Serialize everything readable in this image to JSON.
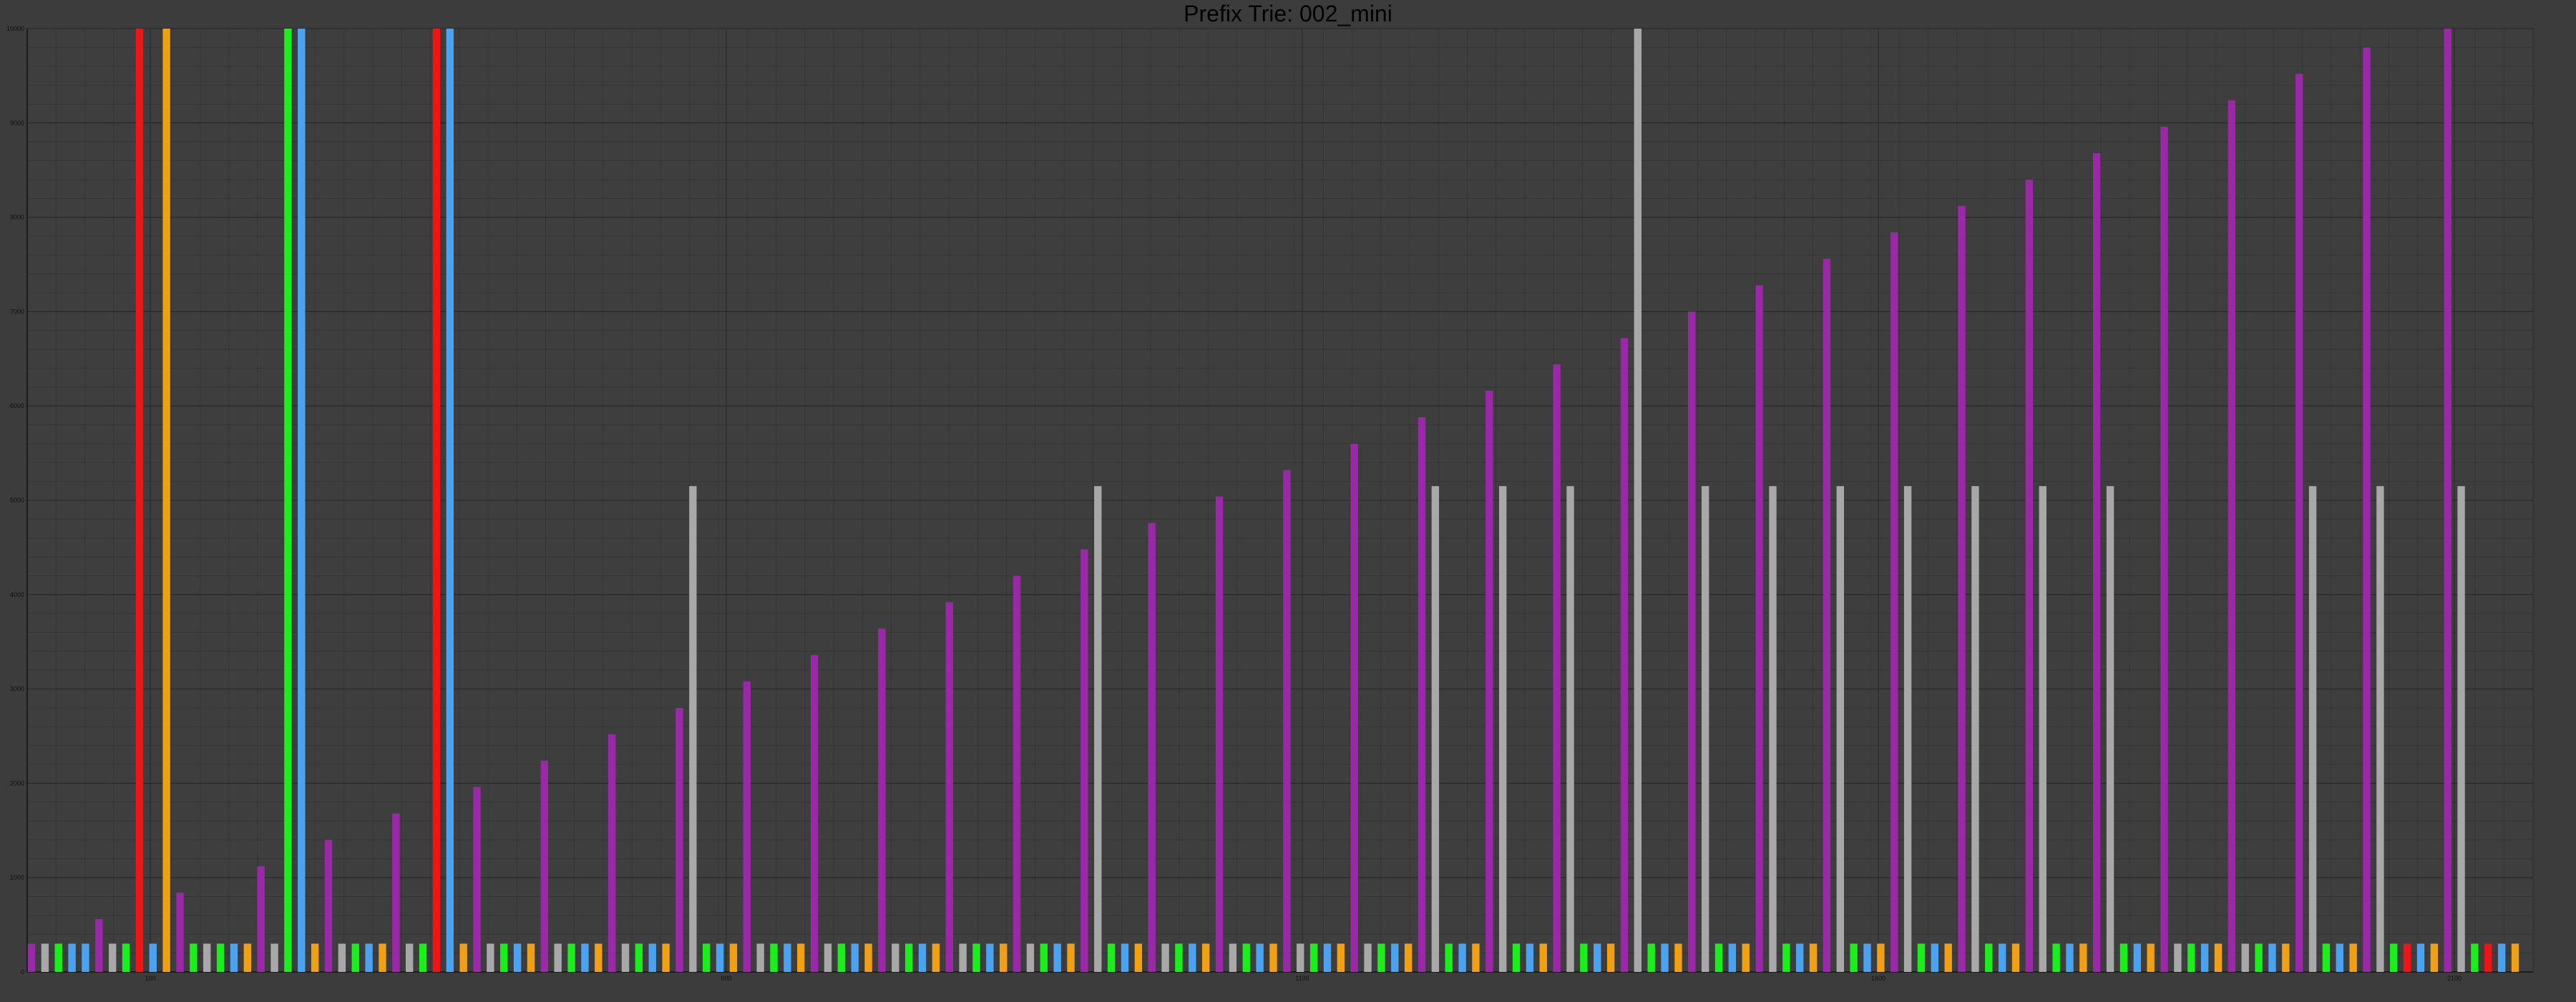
{
  "chart_data": {
    "type": "bar",
    "title": "Prefix Trie: 002_mini",
    "xlabel": "",
    "ylabel": "",
    "ylim": [
      0,
      10000
    ],
    "yticks": [
      0,
      1000,
      2000,
      3000,
      4000,
      5000,
      6000,
      7000,
      8000,
      9000,
      10000
    ],
    "xticks": [
      "100",
      "600",
      "1100",
      "1600",
      "2100"
    ],
    "grid": true,
    "legend": "none",
    "colors": {
      "purple": "#9b28a8",
      "gray": "#a8a8a8",
      "blue": "#4aa3f0",
      "green": "#19f019",
      "orange": "#f0a010",
      "red": "#f01414"
    },
    "bars": [
      {
        "c": "purple",
        "v": 300
      },
      {
        "c": "gray",
        "v": 300
      },
      {
        "c": "green",
        "v": 300
      },
      {
        "c": "blue",
        "v": 300
      },
      {
        "c": "blue",
        "v": 300
      },
      {
        "c": "purple",
        "v": 560
      },
      {
        "c": "gray",
        "v": 300
      },
      {
        "c": "green",
        "v": 300
      },
      {
        "c": "red",
        "v": 10000
      },
      {
        "c": "blue",
        "v": 300
      },
      {
        "c": "orange",
        "v": 10000
      },
      {
        "c": "purple",
        "v": 840
      },
      {
        "c": "green",
        "v": 300
      },
      {
        "c": "gray",
        "v": 300
      },
      {
        "c": "green",
        "v": 300
      },
      {
        "c": "blue",
        "v": 300
      },
      {
        "c": "orange",
        "v": 300
      },
      {
        "c": "purple",
        "v": 1120
      },
      {
        "c": "gray",
        "v": 300
      },
      {
        "c": "green",
        "v": 10000
      },
      {
        "c": "blue",
        "v": 10000
      },
      {
        "c": "orange",
        "v": 300
      },
      {
        "c": "purple",
        "v": 1400
      },
      {
        "c": "gray",
        "v": 300
      },
      {
        "c": "green",
        "v": 300
      },
      {
        "c": "blue",
        "v": 300
      },
      {
        "c": "orange",
        "v": 300
      },
      {
        "c": "purple",
        "v": 1680
      },
      {
        "c": "gray",
        "v": 300
      },
      {
        "c": "green",
        "v": 300
      },
      {
        "c": "red",
        "v": 10000
      },
      {
        "c": "blue",
        "v": 10000
      },
      {
        "c": "orange",
        "v": 300
      },
      {
        "c": "purple",
        "v": 1960
      },
      {
        "c": "gray",
        "v": 300
      },
      {
        "c": "green",
        "v": 300
      },
      {
        "c": "blue",
        "v": 300
      },
      {
        "c": "orange",
        "v": 300
      },
      {
        "c": "purple",
        "v": 2240
      },
      {
        "c": "gray",
        "v": 300
      },
      {
        "c": "green",
        "v": 300
      },
      {
        "c": "blue",
        "v": 300
      },
      {
        "c": "orange",
        "v": 300
      },
      {
        "c": "purple",
        "v": 2520
      },
      {
        "c": "gray",
        "v": 300
      },
      {
        "c": "green",
        "v": 300
      },
      {
        "c": "blue",
        "v": 300
      },
      {
        "c": "orange",
        "v": 300
      },
      {
        "c": "purple",
        "v": 2800
      },
      {
        "c": "gray",
        "v": 5150
      },
      {
        "c": "green",
        "v": 300
      },
      {
        "c": "blue",
        "v": 300
      },
      {
        "c": "orange",
        "v": 300
      },
      {
        "c": "purple",
        "v": 3080
      },
      {
        "c": "gray",
        "v": 300
      },
      {
        "c": "green",
        "v": 300
      },
      {
        "c": "blue",
        "v": 300
      },
      {
        "c": "orange",
        "v": 300
      },
      {
        "c": "purple",
        "v": 3360
      },
      {
        "c": "gray",
        "v": 300
      },
      {
        "c": "green",
        "v": 300
      },
      {
        "c": "blue",
        "v": 300
      },
      {
        "c": "orange",
        "v": 300
      },
      {
        "c": "purple",
        "v": 3640
      },
      {
        "c": "gray",
        "v": 300
      },
      {
        "c": "green",
        "v": 300
      },
      {
        "c": "blue",
        "v": 300
      },
      {
        "c": "orange",
        "v": 300
      },
      {
        "c": "purple",
        "v": 3920
      },
      {
        "c": "gray",
        "v": 300
      },
      {
        "c": "green",
        "v": 300
      },
      {
        "c": "blue",
        "v": 300
      },
      {
        "c": "orange",
        "v": 300
      },
      {
        "c": "purple",
        "v": 4200
      },
      {
        "c": "gray",
        "v": 300
      },
      {
        "c": "green",
        "v": 300
      },
      {
        "c": "blue",
        "v": 300
      },
      {
        "c": "orange",
        "v": 300
      },
      {
        "c": "purple",
        "v": 4480
      },
      {
        "c": "gray",
        "v": 5150
      },
      {
        "c": "green",
        "v": 300
      },
      {
        "c": "blue",
        "v": 300
      },
      {
        "c": "orange",
        "v": 300
      },
      {
        "c": "purple",
        "v": 4760
      },
      {
        "c": "gray",
        "v": 300
      },
      {
        "c": "green",
        "v": 300
      },
      {
        "c": "blue",
        "v": 300
      },
      {
        "c": "orange",
        "v": 300
      },
      {
        "c": "purple",
        "v": 5040
      },
      {
        "c": "gray",
        "v": 300
      },
      {
        "c": "green",
        "v": 300
      },
      {
        "c": "blue",
        "v": 300
      },
      {
        "c": "orange",
        "v": 300
      },
      {
        "c": "purple",
        "v": 5320
      },
      {
        "c": "gray",
        "v": 300
      },
      {
        "c": "green",
        "v": 300
      },
      {
        "c": "blue",
        "v": 300
      },
      {
        "c": "orange",
        "v": 300
      },
      {
        "c": "purple",
        "v": 5600
      },
      {
        "c": "gray",
        "v": 300
      },
      {
        "c": "green",
        "v": 300
      },
      {
        "c": "blue",
        "v": 300
      },
      {
        "c": "orange",
        "v": 300
      },
      {
        "c": "purple",
        "v": 5880
      },
      {
        "c": "gray",
        "v": 5150
      },
      {
        "c": "green",
        "v": 300
      },
      {
        "c": "blue",
        "v": 300
      },
      {
        "c": "orange",
        "v": 300
      },
      {
        "c": "purple",
        "v": 6160
      },
      {
        "c": "gray",
        "v": 5150
      },
      {
        "c": "green",
        "v": 300
      },
      {
        "c": "blue",
        "v": 300
      },
      {
        "c": "orange",
        "v": 300
      },
      {
        "c": "purple",
        "v": 6440
      },
      {
        "c": "gray",
        "v": 5150
      },
      {
        "c": "green",
        "v": 300
      },
      {
        "c": "blue",
        "v": 300
      },
      {
        "c": "orange",
        "v": 300
      },
      {
        "c": "purple",
        "v": 6720
      },
      {
        "c": "gray",
        "v": 10000
      },
      {
        "c": "green",
        "v": 300
      },
      {
        "c": "blue",
        "v": 300
      },
      {
        "c": "orange",
        "v": 300
      },
      {
        "c": "purple",
        "v": 7000
      },
      {
        "c": "gray",
        "v": 5150
      },
      {
        "c": "green",
        "v": 300
      },
      {
        "c": "blue",
        "v": 300
      },
      {
        "c": "orange",
        "v": 300
      },
      {
        "c": "purple",
        "v": 7280
      },
      {
        "c": "gray",
        "v": 5150
      },
      {
        "c": "green",
        "v": 300
      },
      {
        "c": "blue",
        "v": 300
      },
      {
        "c": "orange",
        "v": 300
      },
      {
        "c": "purple",
        "v": 7560
      },
      {
        "c": "gray",
        "v": 5150
      },
      {
        "c": "green",
        "v": 300
      },
      {
        "c": "blue",
        "v": 300
      },
      {
        "c": "orange",
        "v": 300
      },
      {
        "c": "purple",
        "v": 7840
      },
      {
        "c": "gray",
        "v": 5150
      },
      {
        "c": "green",
        "v": 300
      },
      {
        "c": "blue",
        "v": 300
      },
      {
        "c": "orange",
        "v": 300
      },
      {
        "c": "purple",
        "v": 8120
      },
      {
        "c": "gray",
        "v": 5150
      },
      {
        "c": "green",
        "v": 300
      },
      {
        "c": "blue",
        "v": 300
      },
      {
        "c": "orange",
        "v": 300
      },
      {
        "c": "purple",
        "v": 8400
      },
      {
        "c": "gray",
        "v": 5150
      },
      {
        "c": "green",
        "v": 300
      },
      {
        "c": "blue",
        "v": 300
      },
      {
        "c": "orange",
        "v": 300
      },
      {
        "c": "purple",
        "v": 8680
      },
      {
        "c": "gray",
        "v": 5150
      },
      {
        "c": "green",
        "v": 300
      },
      {
        "c": "blue",
        "v": 300
      },
      {
        "c": "orange",
        "v": 300
      },
      {
        "c": "purple",
        "v": 8960
      },
      {
        "c": "gray",
        "v": 300
      },
      {
        "c": "green",
        "v": 300
      },
      {
        "c": "blue",
        "v": 300
      },
      {
        "c": "orange",
        "v": 300
      },
      {
        "c": "purple",
        "v": 9240
      },
      {
        "c": "gray",
        "v": 300
      },
      {
        "c": "green",
        "v": 300
      },
      {
        "c": "blue",
        "v": 300
      },
      {
        "c": "orange",
        "v": 300
      },
      {
        "c": "purple",
        "v": 9520
      },
      {
        "c": "gray",
        "v": 5150
      },
      {
        "c": "green",
        "v": 300
      },
      {
        "c": "blue",
        "v": 300
      },
      {
        "c": "orange",
        "v": 300
      },
      {
        "c": "purple",
        "v": 9800
      },
      {
        "c": "gray",
        "v": 5150
      },
      {
        "c": "green",
        "v": 300
      },
      {
        "c": "red",
        "v": 300
      },
      {
        "c": "blue",
        "v": 300
      },
      {
        "c": "orange",
        "v": 300
      },
      {
        "c": "purple",
        "v": 10000
      },
      {
        "c": "gray",
        "v": 5150
      },
      {
        "c": "green",
        "v": 300
      },
      {
        "c": "red",
        "v": 300
      },
      {
        "c": "blue",
        "v": 300
      },
      {
        "c": "orange",
        "v": 300
      }
    ]
  }
}
